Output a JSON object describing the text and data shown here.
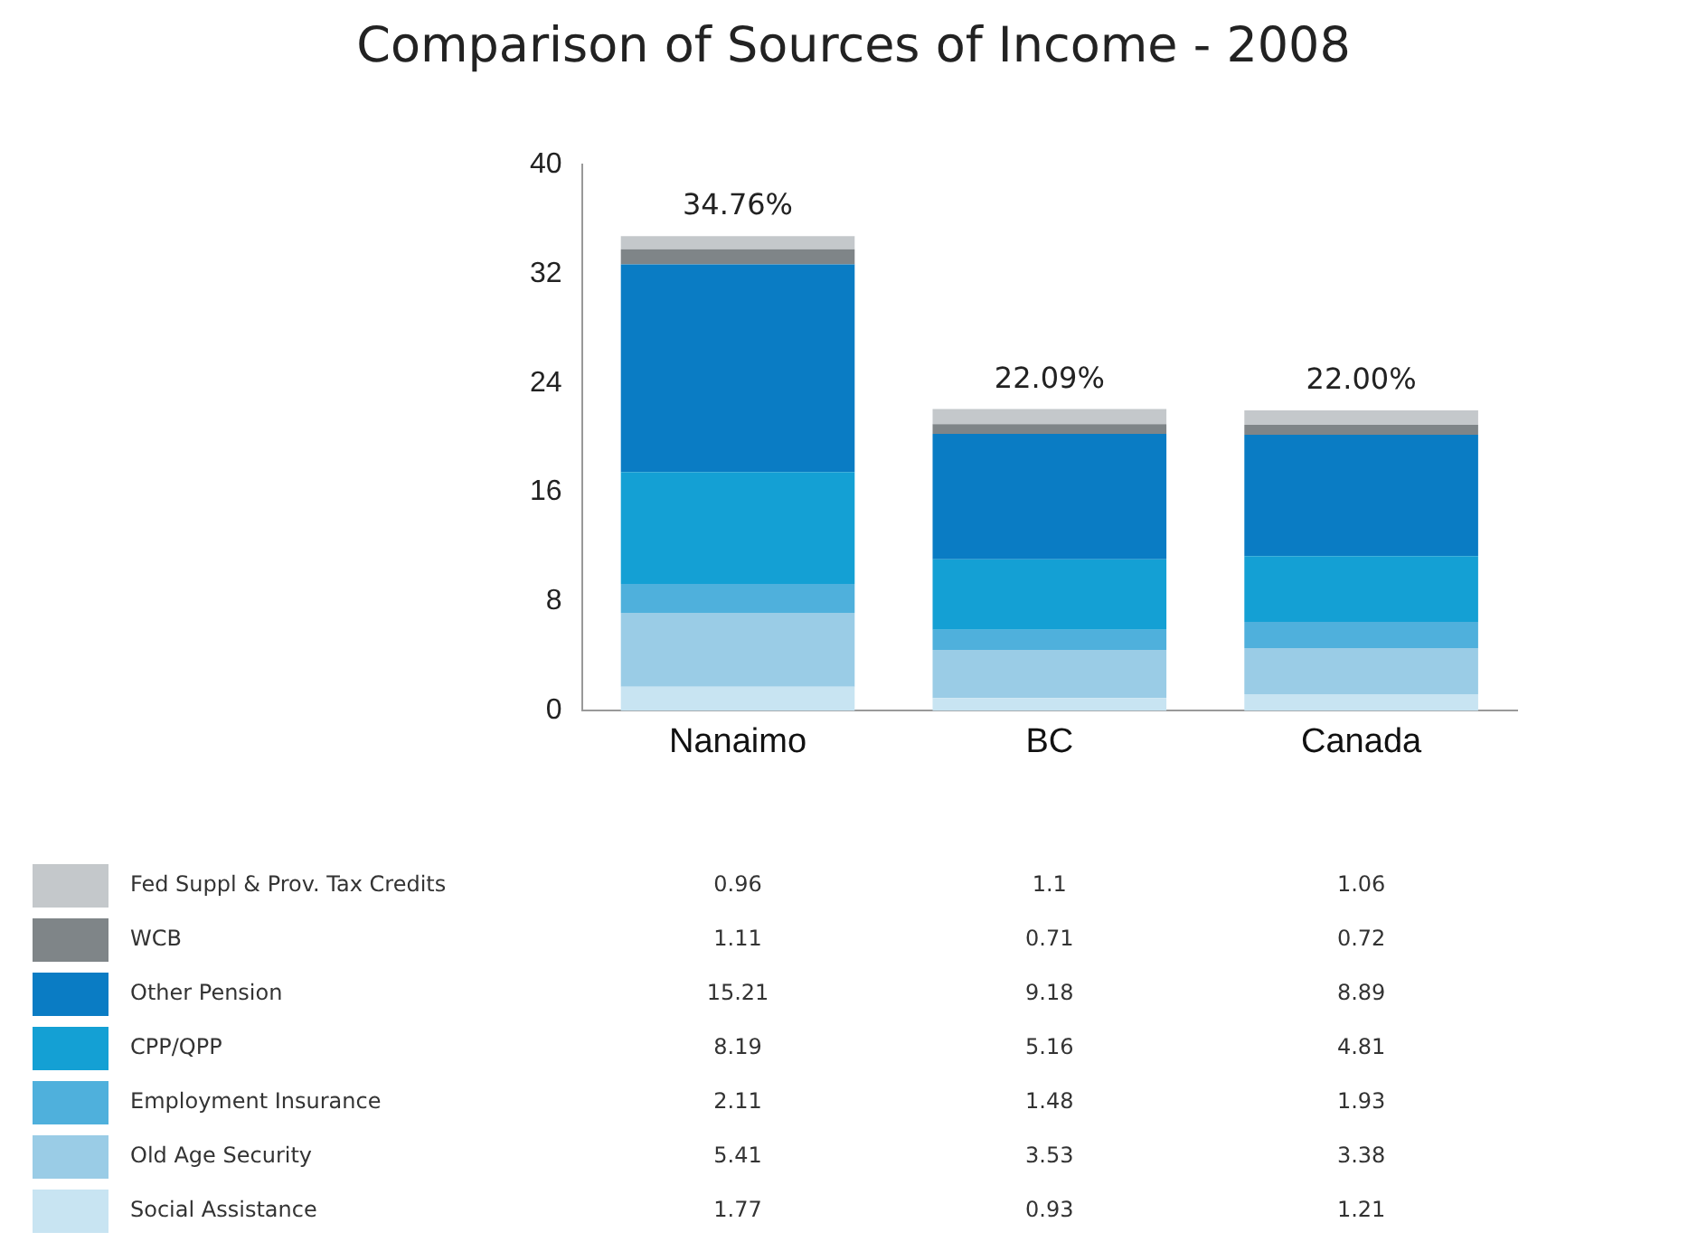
{
  "chart_data": {
    "type": "bar",
    "title": "Comparison of Sources of Income - 2008",
    "categories": [
      "Nanaimo",
      "BC",
      "Canada"
    ],
    "stacked": true,
    "ylim": [
      0,
      40
    ],
    "yticks": [
      0,
      8,
      16,
      24,
      32,
      40
    ],
    "grid": false,
    "legend": "bottom",
    "data_labels": true,
    "totals": [
      "34.76%",
      "22.09%",
      "22.00%"
    ],
    "series": [
      {
        "name": "Social Assistance",
        "color": "#c8e4f2",
        "values": [
          1.77,
          0.93,
          1.21
        ]
      },
      {
        "name": "Old Age Security",
        "color": "#9acce6",
        "values": [
          5.41,
          3.53,
          3.38
        ]
      },
      {
        "name": "Employment Insurance",
        "color": "#4fb0dc",
        "values": [
          2.11,
          1.48,
          1.93
        ]
      },
      {
        "name": "CPP/QPP",
        "color": "#14a0d4",
        "values": [
          8.19,
          5.16,
          4.81
        ]
      },
      {
        "name": "Other Pension",
        "color": "#0a7cc4",
        "values": [
          15.21,
          9.18,
          8.89
        ]
      },
      {
        "name": "WCB",
        "color": "#7f8588",
        "values": [
          1.11,
          0.71,
          0.72
        ]
      },
      {
        "name": "Fed Suppl & Prov. Tax Credits",
        "color": "#c4c8cb",
        "values": [
          0.96,
          1.1,
          1.06
        ]
      }
    ]
  }
}
